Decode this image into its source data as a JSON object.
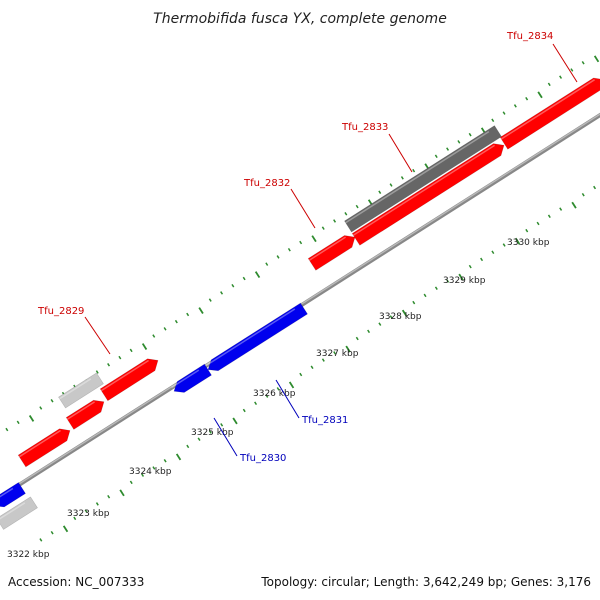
{
  "title": "Thermobifida fusca YX, complete genome",
  "footer": {
    "accession": "Accession: NC_007333",
    "summary": "Topology: circular; Length: 3,642,249 bp; Genes: 3,176"
  },
  "colors": {
    "forward_gene": "#ff0000",
    "reverse_gene": "#0000ee",
    "other_feature": "#666666",
    "light_feature": "#c8c8c8",
    "backbone": "#888888",
    "tick": "#2e8b2e",
    "forward_label": "#cc0000",
    "reverse_label": "#0000bb"
  },
  "scale_labels": [
    "3322 kbp",
    "3323 kbp",
    "3324 kbp",
    "3325 kbp",
    "3326 kbp",
    "3327 kbp",
    "3328 kbp",
    "3329 kbp",
    "3330 kbp"
  ],
  "gene_labels": [
    {
      "text": "Tfu_2829",
      "strand": "forward"
    },
    {
      "text": "Tfu_2830",
      "strand": "reverse"
    },
    {
      "text": "Tfu_2831",
      "strand": "reverse"
    },
    {
      "text": "Tfu_2832",
      "strand": "forward"
    },
    {
      "text": "Tfu_2833",
      "strand": "forward"
    },
    {
      "text": "Tfu_2834",
      "strand": "forward"
    }
  ]
}
